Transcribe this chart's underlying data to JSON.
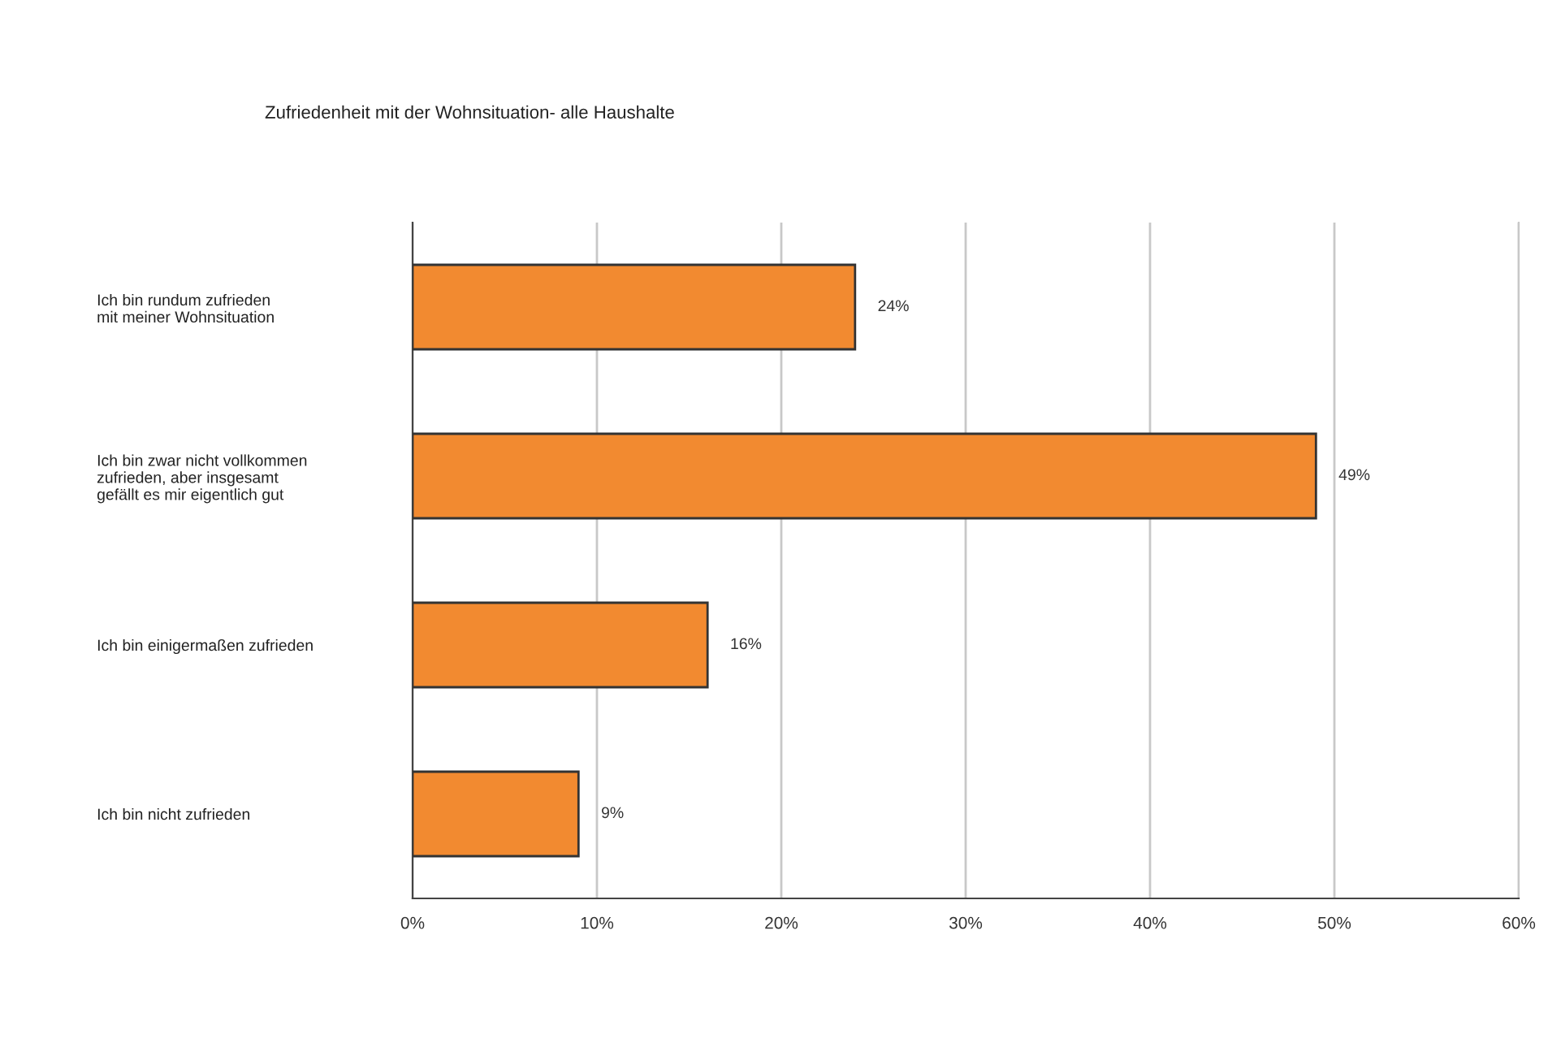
{
  "chart_data": {
    "type": "bar",
    "orientation": "horizontal",
    "title": "Zufriedenheit mit der Wohnsituation- alle Haushalte",
    "categories": [
      "Ich bin rundum zufrieden\nmit meiner Wohnsituation",
      "Ich bin zwar nicht vollkommen\nzufrieden, aber insgesamt\ngefällt es mir eigentlich gut",
      "Ich bin einigermaßen zufrieden",
      "Ich bin nicht zufrieden"
    ],
    "values": [
      24,
      49,
      16,
      9
    ],
    "value_labels": [
      "24%",
      "49%",
      "16%",
      "9%"
    ],
    "color": "#f28a30",
    "xlim": [
      0,
      60
    ],
    "xticks": [
      {
        "value": 0,
        "label": "0%"
      },
      {
        "value": 10,
        "label": "10%"
      },
      {
        "value": 20,
        "label": "20%"
      },
      {
        "value": 30,
        "label": "30%"
      },
      {
        "value": 40,
        "label": "40%"
      },
      {
        "value": 50,
        "label": "50%"
      },
      {
        "value": 60,
        "label": "60%"
      }
    ],
    "grid": "x"
  }
}
